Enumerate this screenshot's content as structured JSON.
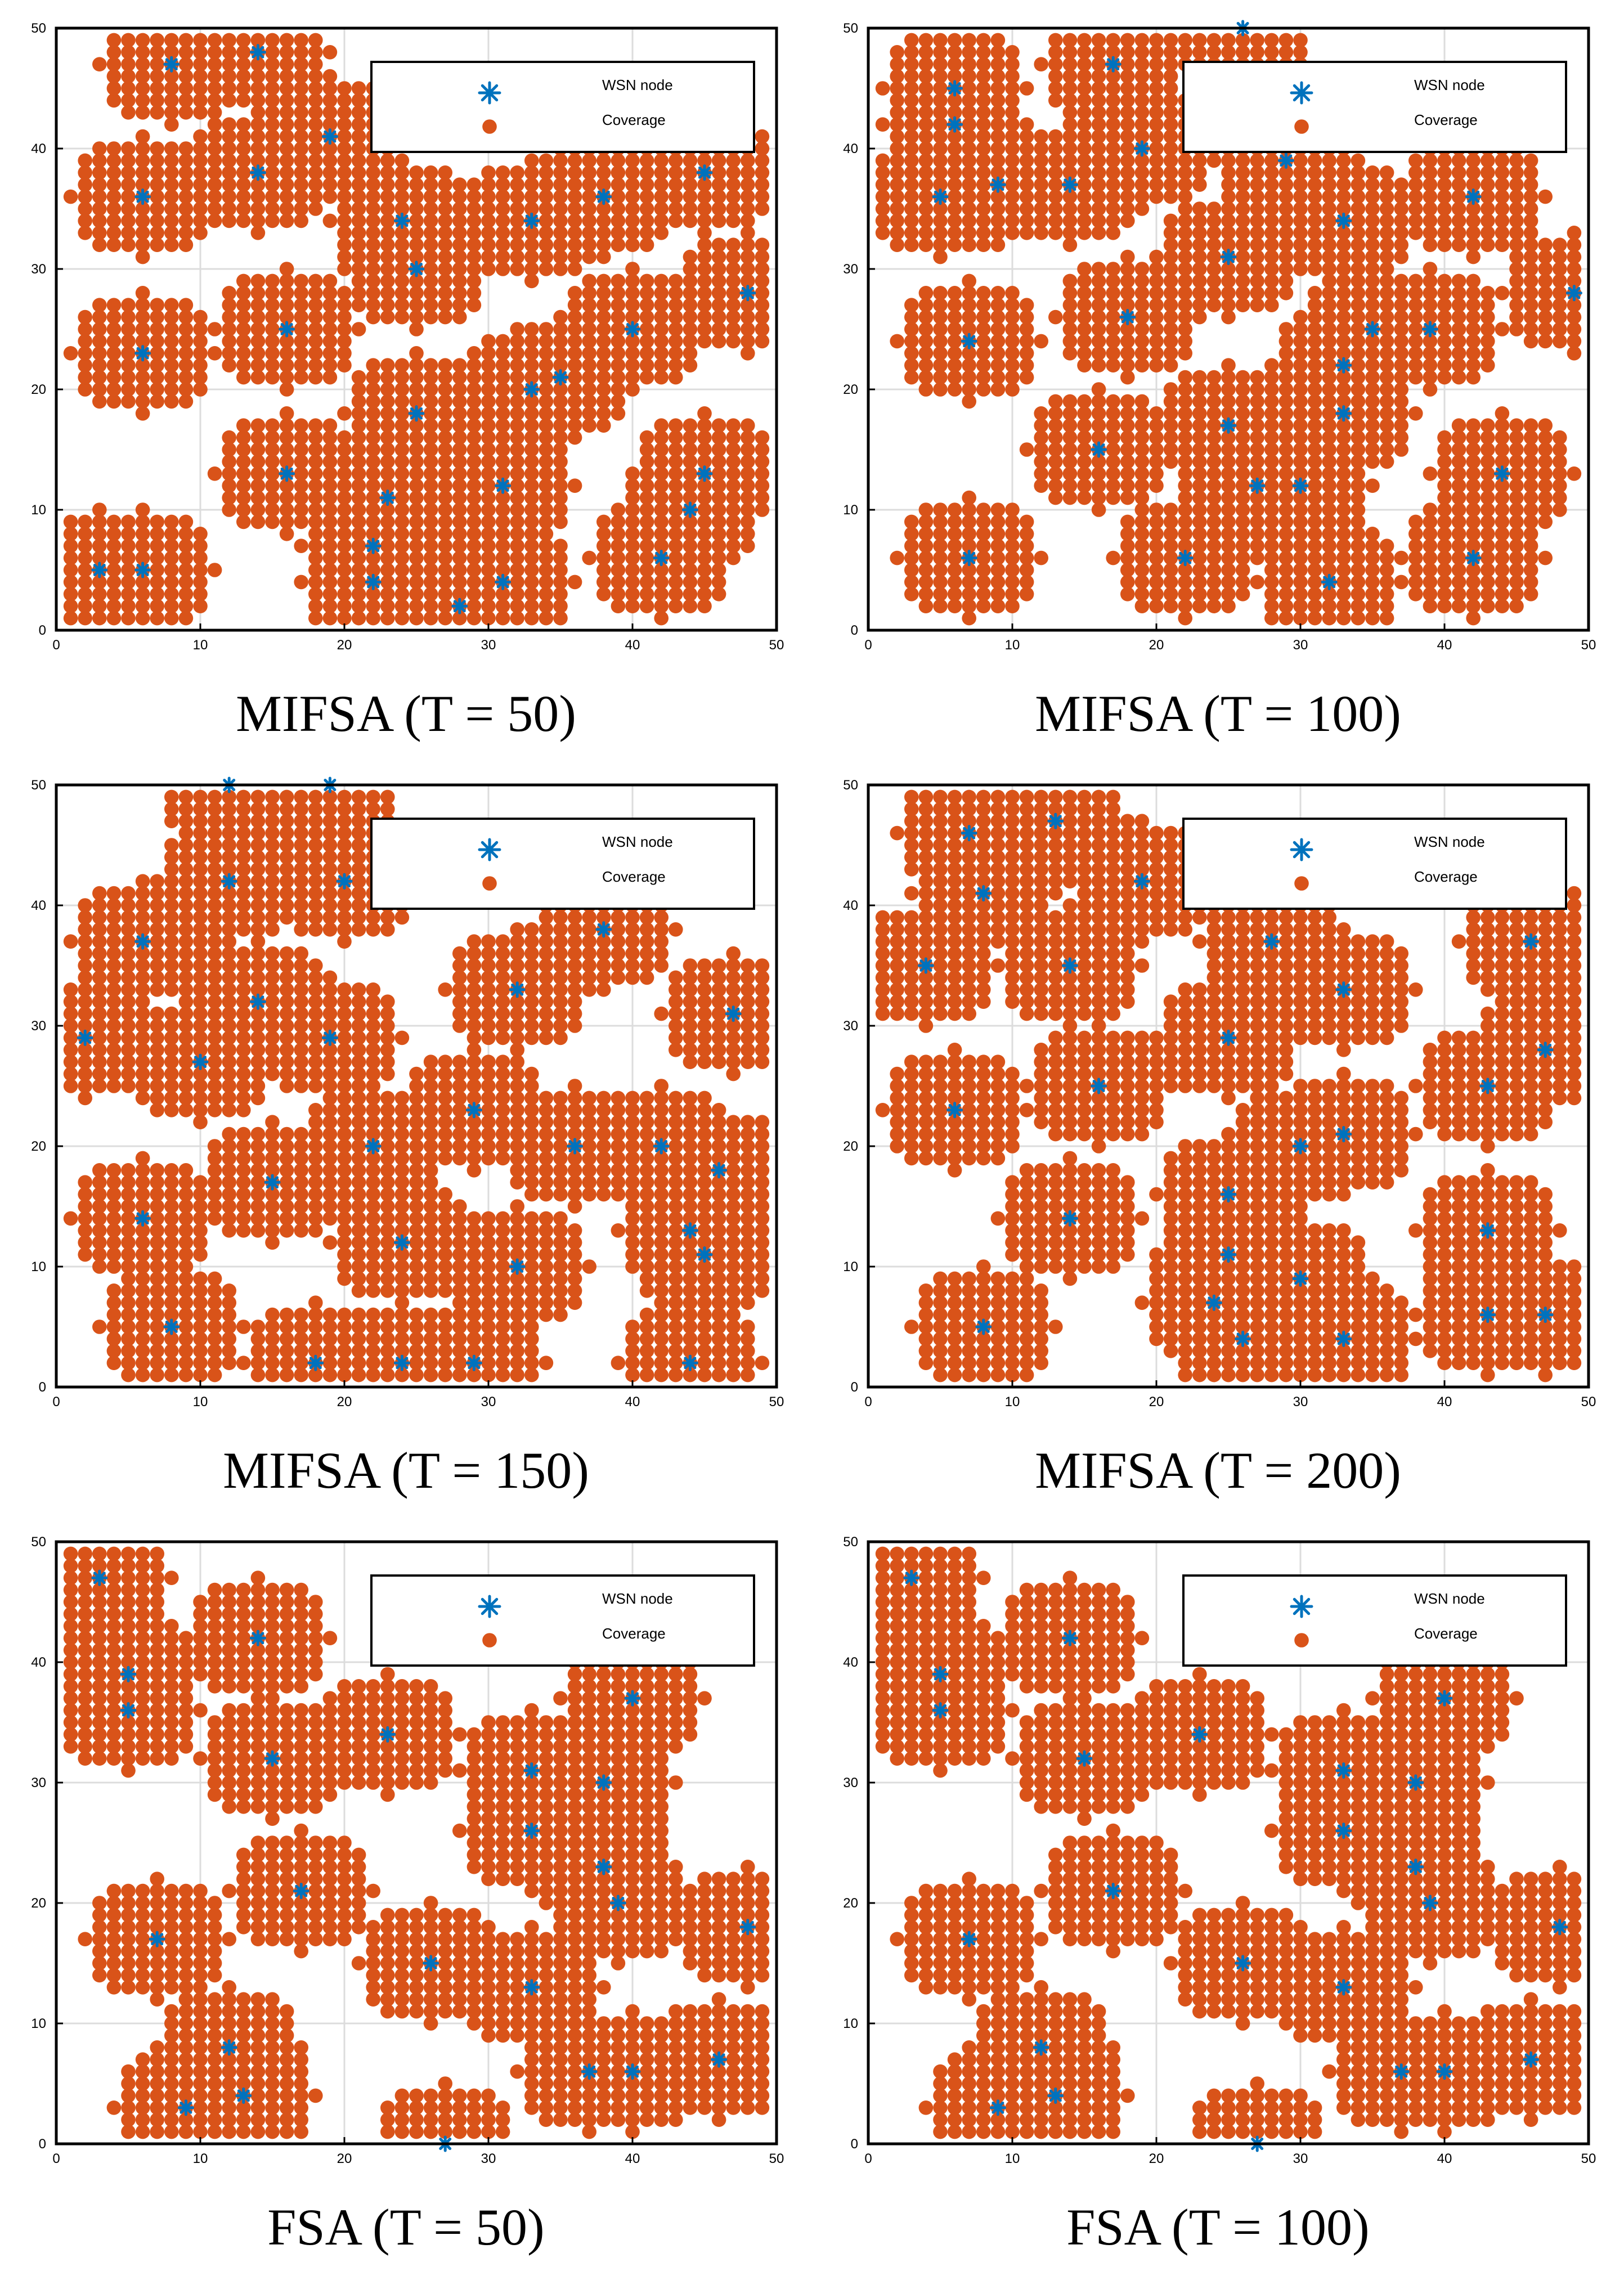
{
  "figure": {
    "colors": {
      "coverage": "#d95319",
      "node": "#0072bd",
      "grid": "#dcdcdc",
      "axis": "#000000",
      "background": "#ffffff"
    },
    "legend": {
      "node_label": "WSN node",
      "coverage_label": "Coverage",
      "node_icon": "asterisk-icon",
      "coverage_icon": "filled-circle-icon",
      "placement": "top-right"
    }
  },
  "chart_data": [
    {
      "type": "scatter",
      "caption": "MIFSA (T = 50)",
      "xlim": [
        0,
        50
      ],
      "ylim": [
        0,
        50
      ],
      "xticks": [
        "0",
        "10",
        "20",
        "30",
        "40",
        "50"
      ],
      "yticks": [
        "0",
        "10",
        "20",
        "30",
        "40",
        "50"
      ],
      "grid": true,
      "sensing_radius": 5,
      "series": [
        {
          "name": "WSN node",
          "marker": "asterisk",
          "x": [
            14,
            8,
            19,
            6,
            14,
            38,
            45,
            24,
            33,
            25,
            48,
            6,
            16,
            40,
            35,
            25,
            33,
            16,
            31,
            23,
            45,
            44,
            22,
            28,
            22,
            42,
            31,
            3,
            6
          ],
          "y": [
            48,
            47,
            41,
            36,
            38,
            36,
            38,
            34,
            34,
            30,
            28,
            23,
            25,
            25,
            21,
            18,
            20,
            13,
            12,
            11,
            13,
            10,
            7,
            2,
            4,
            6,
            4,
            5,
            5
          ]
        },
        {
          "name": "Coverage",
          "marker": "filled-circle"
        }
      ]
    },
    {
      "type": "scatter",
      "caption": "MIFSA (T = 100)",
      "xlim": [
        0,
        50
      ],
      "ylim": [
        0,
        50
      ],
      "xticks": [
        "0",
        "10",
        "20",
        "30",
        "40",
        "50"
      ],
      "yticks": [
        "0",
        "10",
        "20",
        "30",
        "40",
        "50"
      ],
      "grid": true,
      "sensing_radius": 5,
      "series": [
        {
          "name": "WSN node",
          "marker": "asterisk",
          "x": [
            26,
            17,
            6,
            5,
            9,
            14,
            19,
            29,
            42,
            33,
            25,
            7,
            18,
            39,
            49,
            33,
            16,
            25,
            33,
            27,
            30,
            44,
            7,
            22,
            32,
            42,
            6,
            35
          ],
          "y": [
            50,
            47,
            45,
            36,
            37,
            37,
            40,
            39,
            36,
            34,
            31,
            24,
            26,
            25,
            28,
            22,
            15,
            17,
            18,
            12,
            12,
            13,
            6,
            6,
            4,
            6,
            42,
            25
          ]
        },
        {
          "name": "Coverage",
          "marker": "filled-circle"
        }
      ]
    },
    {
      "type": "scatter",
      "caption": "MIFSA (T = 150)",
      "xlim": [
        0,
        50
      ],
      "ylim": [
        0,
        50
      ],
      "xticks": [
        "0",
        "10",
        "20",
        "30",
        "40",
        "50"
      ],
      "yticks": [
        "0",
        "10",
        "20",
        "30",
        "40",
        "50"
      ],
      "grid": true,
      "sensing_radius": 5,
      "series": [
        {
          "name": "WSN node",
          "marker": "asterisk",
          "x": [
            12,
            19,
            12,
            6,
            14,
            2,
            10,
            19,
            32,
            38,
            47,
            29,
            22,
            15,
            6,
            24,
            36,
            42,
            46,
            32,
            45,
            8,
            18,
            24,
            29,
            44,
            20,
            44
          ],
          "y": [
            50,
            50,
            42,
            37,
            32,
            29,
            27,
            29,
            33,
            38,
            31,
            23,
            20,
            17,
            14,
            12,
            20,
            20,
            18,
            10,
            11,
            5,
            2,
            2,
            2,
            2,
            42,
            13
          ]
        },
        {
          "name": "Coverage",
          "marker": "filled-circle"
        }
      ]
    },
    {
      "type": "scatter",
      "caption": "MIFSA (T = 200)",
      "xlim": [
        0,
        50
      ],
      "ylim": [
        0,
        50
      ],
      "xticks": [
        "0",
        "10",
        "20",
        "30",
        "40",
        "50"
      ],
      "yticks": [
        "0",
        "10",
        "20",
        "30",
        "40",
        "50"
      ],
      "grid": true,
      "sensing_radius": 5,
      "series": [
        {
          "name": "WSN node",
          "marker": "asterisk",
          "x": [
            7,
            13,
            8,
            19,
            4,
            14,
            28,
            33,
            46,
            47,
            6,
            16,
            25,
            43,
            33,
            25,
            14,
            43,
            25,
            47,
            8,
            24,
            30,
            26,
            33,
            43,
            30
          ],
          "y": [
            46,
            47,
            41,
            42,
            35,
            35,
            37,
            33,
            37,
            28,
            23,
            25,
            29,
            25,
            21,
            16,
            14,
            13,
            11,
            6,
            5,
            7,
            9,
            4,
            4,
            6,
            20
          ]
        },
        {
          "name": "Coverage",
          "marker": "filled-circle"
        }
      ]
    },
    {
      "type": "scatter",
      "caption": "FSA (T = 50)",
      "xlim": [
        0,
        50
      ],
      "ylim": [
        0,
        50
      ],
      "xticks": [
        "0",
        "10",
        "20",
        "30",
        "40",
        "50"
      ],
      "yticks": [
        "0",
        "10",
        "20",
        "30",
        "40",
        "50"
      ],
      "grid": true,
      "sensing_radius": 5,
      "series": [
        {
          "name": "WSN node",
          "marker": "asterisk",
          "x": [
            3,
            5,
            5,
            14,
            15,
            23,
            33,
            38,
            40,
            38,
            33,
            7,
            17,
            38,
            39,
            48,
            26,
            33,
            12,
            9,
            13,
            27,
            46,
            37,
            40
          ],
          "y": [
            47,
            39,
            36,
            42,
            32,
            34,
            31,
            30,
            37,
            23,
            26,
            17,
            21,
            23,
            20,
            18,
            15,
            13,
            8,
            3,
            4,
            0,
            7,
            6,
            6
          ]
        },
        {
          "name": "Coverage",
          "marker": "filled-circle"
        }
      ]
    },
    {
      "type": "scatter",
      "caption": "FSA (T = 100)",
      "xlim": [
        0,
        50
      ],
      "ylim": [
        0,
        50
      ],
      "xticks": [
        "0",
        "10",
        "20",
        "30",
        "40",
        "50"
      ],
      "yticks": [
        "0",
        "10",
        "20",
        "30",
        "40",
        "50"
      ],
      "grid": true,
      "sensing_radius": 5,
      "series": [
        {
          "name": "WSN node",
          "marker": "asterisk",
          "x": [
            3,
            5,
            5,
            14,
            15,
            23,
            33,
            38,
            40,
            38,
            33,
            7,
            17,
            38,
            39,
            48,
            26,
            33,
            12,
            9,
            13,
            27,
            46,
            37,
            40
          ],
          "y": [
            47,
            39,
            36,
            42,
            32,
            34,
            31,
            30,
            37,
            23,
            26,
            17,
            21,
            23,
            20,
            18,
            15,
            13,
            8,
            3,
            4,
            0,
            7,
            6,
            6
          ]
        },
        {
          "name": "Coverage",
          "marker": "filled-circle"
        }
      ]
    }
  ]
}
